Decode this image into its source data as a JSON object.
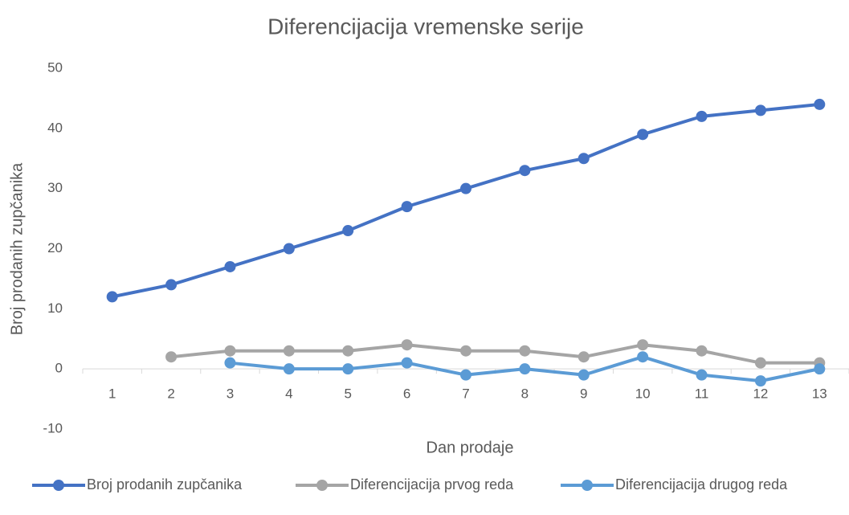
{
  "chart_data": {
    "type": "line",
    "title": "Diferencijacija vremenske serije",
    "x_label": "Dan prodaje",
    "y_label": "Broj prodanih zupčanika",
    "categories": [
      "1",
      "2",
      "3",
      "4",
      "5",
      "6",
      "7",
      "8",
      "9",
      "10",
      "11",
      "12",
      "13"
    ],
    "series": [
      {
        "name": "Broj prodanih zupčanika",
        "color": "#4472c4",
        "values": [
          12,
          14,
          17,
          20,
          23,
          27,
          30,
          33,
          35,
          39,
          42,
          43,
          44
        ]
      },
      {
        "name": "Diferencijacija prvog reda",
        "color": "#a5a5a5",
        "values": [
          null,
          2,
          3,
          3,
          3,
          4,
          3,
          3,
          2,
          4,
          3,
          1,
          1
        ]
      },
      {
        "name": "Diferencijacija drugog reda",
        "color": "#5b9bd5",
        "values": [
          null,
          null,
          1,
          0,
          0,
          1,
          -1,
          0,
          -1,
          2,
          -1,
          -2,
          0
        ]
      }
    ],
    "ylim": [
      -10,
      50
    ],
    "yticks": [
      -10,
      0,
      10,
      20,
      30,
      40,
      50
    ],
    "grid": false,
    "legend": "bottom"
  }
}
